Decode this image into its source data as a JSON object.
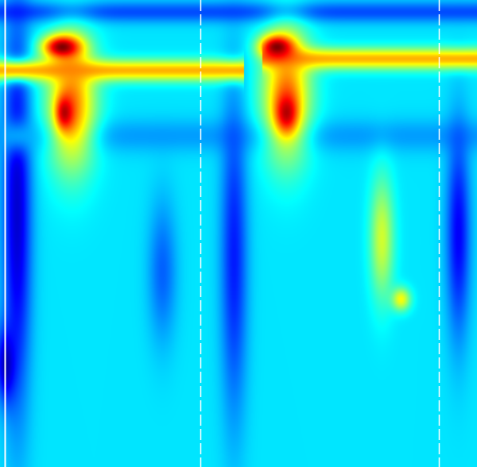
{
  "chart_data": {
    "type": "heatmap",
    "title": "",
    "xlabel": "",
    "ylabel": "",
    "colormap": "jet",
    "value_range": [
      0,
      1
    ],
    "grid": false,
    "colors": {
      "background": "#3fe4f4",
      "divider": "#ffffff"
    },
    "dividers": [
      {
        "name": "solid-line-left",
        "x": 0.01,
        "style": "solid"
      },
      {
        "name": "dashed-line-1",
        "x": 0.42,
        "style": "dashed"
      },
      {
        "name": "dashed-line-2",
        "x": 0.92,
        "style": "dashed"
      }
    ],
    "features": [
      {
        "name": "top-band",
        "kind": "band",
        "x0": 0.0,
        "x1": 1.0,
        "y0": 0.0,
        "y1": 0.05,
        "value": 0.2
      },
      {
        "name": "left-dark-column",
        "kind": "blob",
        "x": 0.035,
        "y": 0.45,
        "rx": 0.03,
        "ry": 0.42,
        "value": 0.08
      },
      {
        "name": "left-stripe-low",
        "kind": "blob",
        "x": 0.012,
        "y": 0.78,
        "rx": 0.02,
        "ry": 0.08,
        "value": 0.05
      },
      {
        "name": "band-row-1",
        "kind": "band",
        "x0": 0.0,
        "x1": 1.0,
        "y0": 0.25,
        "y1": 0.33,
        "value": 0.28
      },
      {
        "name": "blob-mid-left",
        "kind": "blob",
        "x": 0.34,
        "y": 0.58,
        "rx": 0.03,
        "ry": 0.15,
        "value": 0.22
      },
      {
        "name": "column-center",
        "kind": "blob",
        "x": 0.49,
        "y": 0.55,
        "rx": 0.028,
        "ry": 0.34,
        "value": 0.15
      },
      {
        "name": "column-right",
        "kind": "blob",
        "x": 0.96,
        "y": 0.5,
        "rx": 0.025,
        "ry": 0.22,
        "value": 0.12
      },
      {
        "name": "yellow-band-1",
        "kind": "band",
        "x0": 0.0,
        "x1": 0.51,
        "y0": 0.125,
        "y1": 0.175,
        "value": 0.7
      },
      {
        "name": "yellow-band-2",
        "kind": "band",
        "x0": 0.55,
        "x1": 1.0,
        "y0": 0.1,
        "y1": 0.15,
        "value": 0.7
      },
      {
        "name": "hot-arm-1",
        "kind": "blob",
        "x": 0.15,
        "y": 0.22,
        "rx": 0.05,
        "ry": 0.14,
        "value": 0.75
      },
      {
        "name": "hot-arm-2",
        "kind": "blob",
        "x": 0.6,
        "y": 0.2,
        "rx": 0.05,
        "ry": 0.14,
        "value": 0.75
      },
      {
        "name": "peak-1",
        "kind": "blob",
        "x": 0.13,
        "y": 0.1,
        "rx": 0.04,
        "ry": 0.025,
        "value": 1.0
      },
      {
        "name": "peak-2",
        "kind": "blob",
        "x": 0.58,
        "y": 0.1,
        "rx": 0.035,
        "ry": 0.025,
        "value": 1.0
      },
      {
        "name": "secondary-peak-1",
        "kind": "blob",
        "x": 0.135,
        "y": 0.24,
        "rx": 0.018,
        "ry": 0.035,
        "value": 0.95
      },
      {
        "name": "secondary-peak-2",
        "kind": "blob",
        "x": 0.6,
        "y": 0.24,
        "rx": 0.022,
        "ry": 0.04,
        "value": 0.95
      },
      {
        "name": "green-trail",
        "kind": "blob",
        "x": 0.8,
        "y": 0.51,
        "rx": 0.025,
        "ry": 0.13,
        "value": 0.58
      },
      {
        "name": "green-trail-tip",
        "kind": "blob",
        "x": 0.84,
        "y": 0.64,
        "rx": 0.02,
        "ry": 0.025,
        "value": 0.62
      }
    ]
  }
}
